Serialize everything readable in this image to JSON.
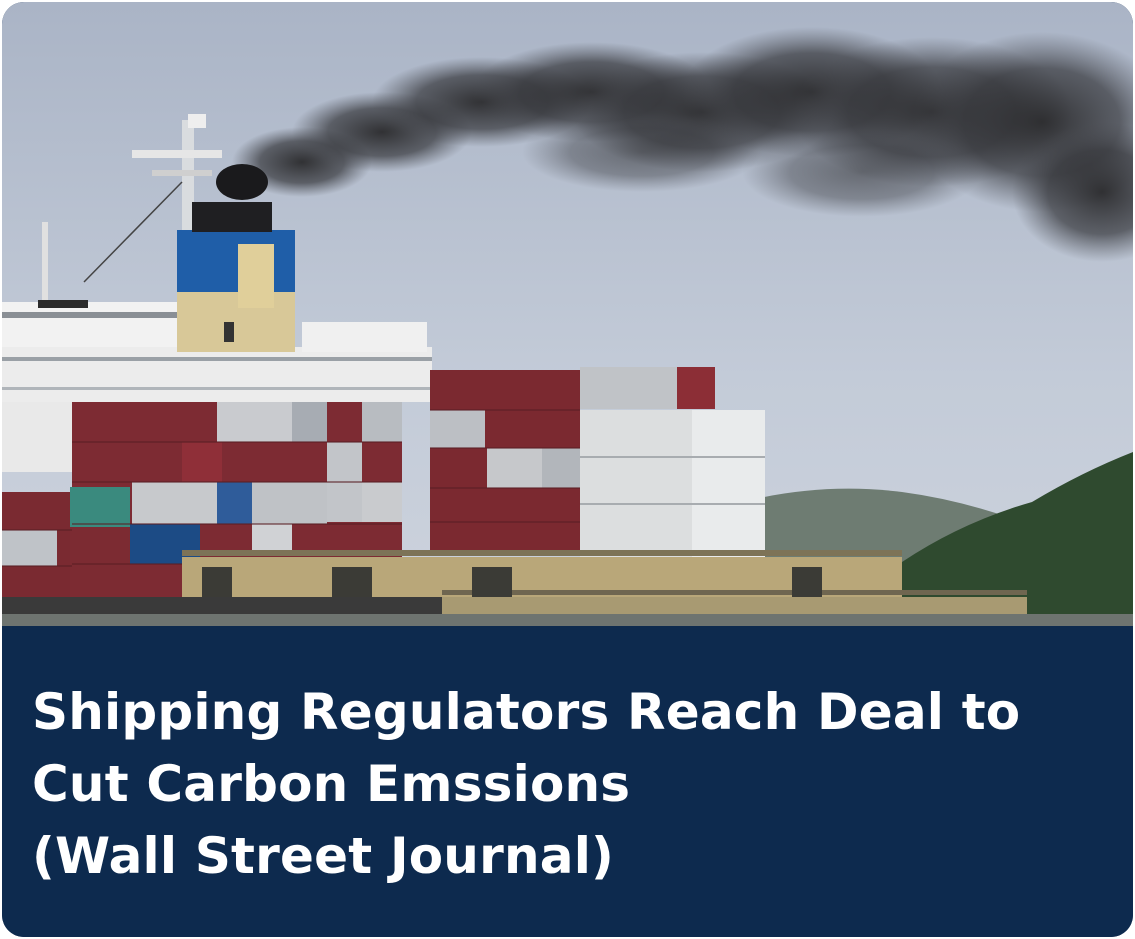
{
  "card": {
    "headline_lines": [
      "Shipping Regulators Reach Deal to",
      "Cut Carbon Emssions",
      "(Wall Street Journal)"
    ]
  },
  "photo": {
    "subject": "container-ship-emitting-smoke"
  },
  "colors": {
    "caption_background": "#0d2a4e",
    "headline_text": "#ffffff"
  }
}
